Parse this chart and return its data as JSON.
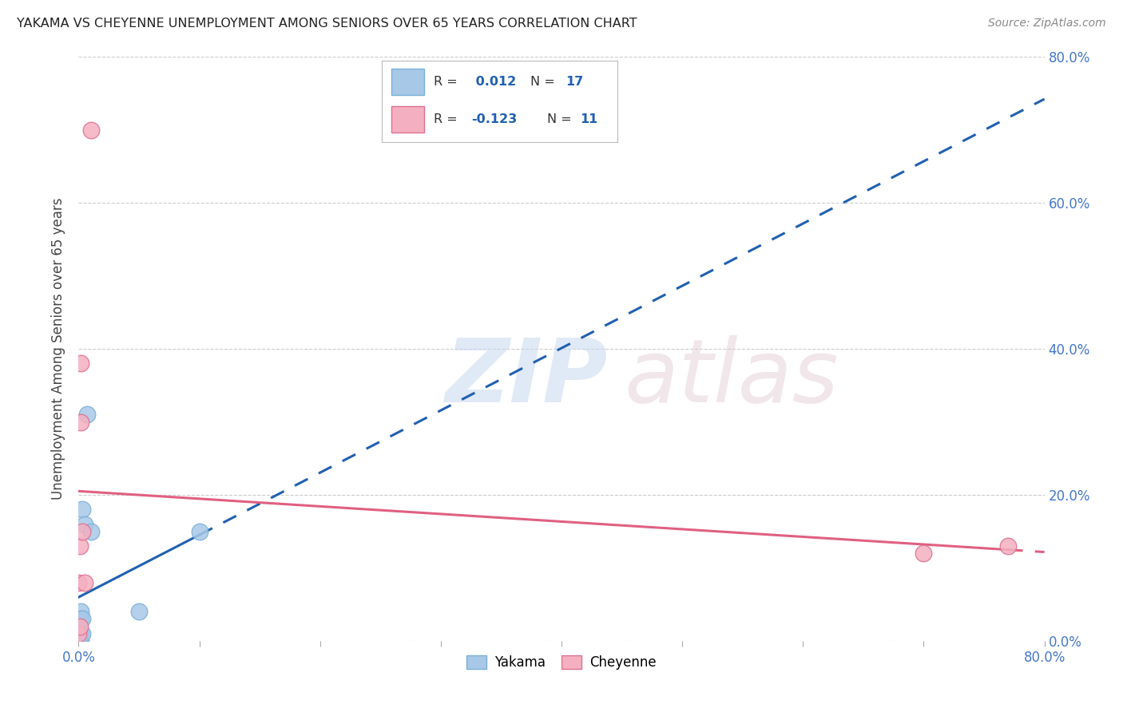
{
  "title": "YAKAMA VS CHEYENNE UNEMPLOYMENT AMONG SENIORS OVER 65 YEARS CORRELATION CHART",
  "source": "Source: ZipAtlas.com",
  "ylabel": "Unemployment Among Seniors over 65 years",
  "yakama_x": [
    0.0,
    0.0,
    0.001,
    0.001,
    0.001,
    0.002,
    0.002,
    0.002,
    0.002,
    0.003,
    0.003,
    0.003,
    0.005,
    0.007,
    0.01,
    0.05,
    0.1
  ],
  "yakama_y": [
    0.01,
    0.02,
    0.0,
    0.01,
    0.03,
    0.0,
    0.01,
    0.03,
    0.04,
    0.01,
    0.03,
    0.18,
    0.16,
    0.31,
    0.15,
    0.04,
    0.15
  ],
  "cheyenne_x": [
    0.0,
    0.0,
    0.001,
    0.001,
    0.002,
    0.002,
    0.003,
    0.005,
    0.01,
    0.7,
    0.77
  ],
  "cheyenne_y": [
    0.01,
    0.08,
    0.02,
    0.13,
    0.3,
    0.38,
    0.15,
    0.08,
    0.7,
    0.12,
    0.13
  ],
  "yakama_R": 0.012,
  "yakama_N": 17,
  "cheyenne_R": -0.123,
  "cheyenne_N": 11,
  "xlim": [
    0.0,
    0.8
  ],
  "ylim": [
    0.0,
    0.8
  ],
  "xticks": [
    0.0,
    0.1,
    0.2,
    0.3,
    0.4,
    0.5,
    0.6,
    0.7,
    0.8
  ],
  "yticks": [
    0.0,
    0.2,
    0.4,
    0.6,
    0.8
  ],
  "yakama_color": "#a8c8e8",
  "yakama_edge_color": "#7ab0d8",
  "cheyenne_color": "#f4b0c0",
  "cheyenne_edge_color": "#e07090",
  "trend_yakama_color": "#2060b0",
  "trend_cheyenne_color": "#e06080",
  "background_color": "#ffffff",
  "grid_color": "#cccccc",
  "title_color": "#222222",
  "source_color": "#888888",
  "axis_label_color": "#444444",
  "tick_color": "#4477cc"
}
